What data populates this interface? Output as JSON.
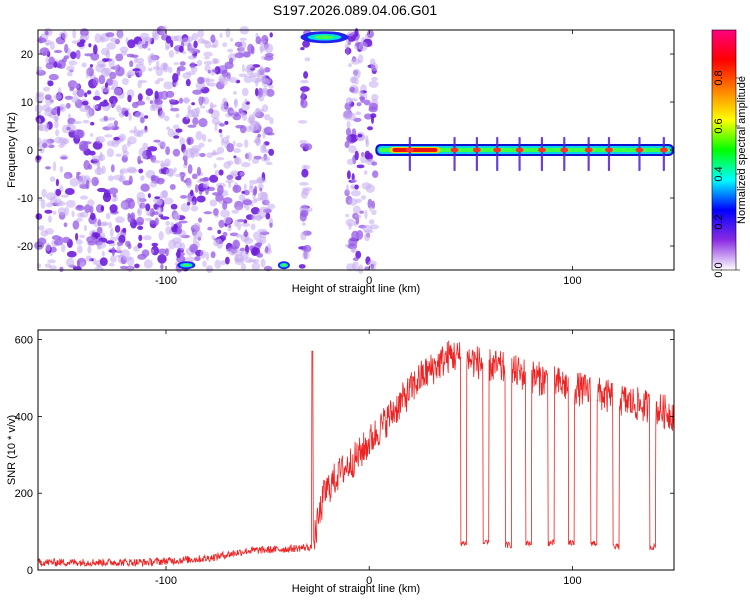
{
  "title": "S197.2026.089.04.06.G01",
  "chart_data": [
    {
      "type": "heatmap",
      "name": "spectrogram",
      "xlabel": "Height of straight line (km)",
      "ylabel": "Frequency (Hz)",
      "xlim": [
        -163,
        150
      ],
      "ylim": [
        -25,
        25
      ],
      "xticks": [
        -100,
        0,
        100
      ],
      "yticks": [
        20,
        10,
        0,
        -10,
        -20
      ],
      "colorbar": {
        "label": "Normalized spectral amplitude",
        "range": [
          0,
          1
        ],
        "ticks": [
          0.0,
          0.2,
          0.4,
          0.6,
          0.8
        ],
        "tick_labels": [
          "0.0",
          "0.2",
          "0.4",
          "0.6",
          "0.8"
        ],
        "colors": [
          "#ffffff",
          "#8a2be2",
          "#0000ff",
          "#00ffff",
          "#00ff00",
          "#ffff00",
          "#ff8000",
          "#ff0000",
          "#ff0080"
        ]
      },
      "features": {
        "noise_region_km": [
          -163,
          -48
        ],
        "gap_km": [
          -48,
          -33
        ],
        "noise_region2_km": [
          -33,
          3
        ],
        "signal_start_km": 3,
        "signal_end_km": 150,
        "signal_freq_hz": 0,
        "strong_segment_km": [
          10,
          35
        ],
        "peaks_km": [
          20,
          42,
          53,
          63,
          74,
          85,
          96,
          108,
          118,
          133,
          145
        ]
      }
    },
    {
      "type": "line",
      "name": "snr",
      "xlabel": "Height of straight line (km)",
      "ylabel": "SNR (10 * v/v)",
      "xlim": [
        -163,
        150
      ],
      "ylim": [
        0,
        625
      ],
      "xticks": [
        -100,
        0,
        100
      ],
      "yticks": [
        0,
        200,
        400,
        600
      ],
      "color": "#ee2222",
      "series": [
        {
          "name": "SNR",
          "baseline_x": [
            -163,
            -110,
            -80,
            -60,
            -40,
            -28,
            -22,
            -15,
            -5,
            10,
            25,
            40
          ],
          "baseline_y": [
            20,
            20,
            30,
            50,
            55,
            60,
            200,
            250,
            300,
            400,
            500,
            560
          ],
          "dips": [
            {
              "from": 45,
              "to": 48,
              "level": 70
            },
            {
              "from": 56,
              "to": 59,
              "level": 70
            },
            {
              "from": 67,
              "to": 70,
              "level": 65
            },
            {
              "from": 77,
              "to": 80,
              "level": 70
            },
            {
              "from": 88,
              "to": 91,
              "level": 70
            },
            {
              "from": 98,
              "to": 101,
              "level": 70
            },
            {
              "from": 109,
              "to": 112,
              "level": 70
            },
            {
              "from": 120,
              "to": 123,
              "level": 60
            },
            {
              "from": 138,
              "to": 141,
              "level": 60
            }
          ],
          "spikes": [
            {
              "x": -28,
              "y": 570
            },
            {
              "x": -15,
              "y": 280
            }
          ]
        }
      ]
    }
  ]
}
